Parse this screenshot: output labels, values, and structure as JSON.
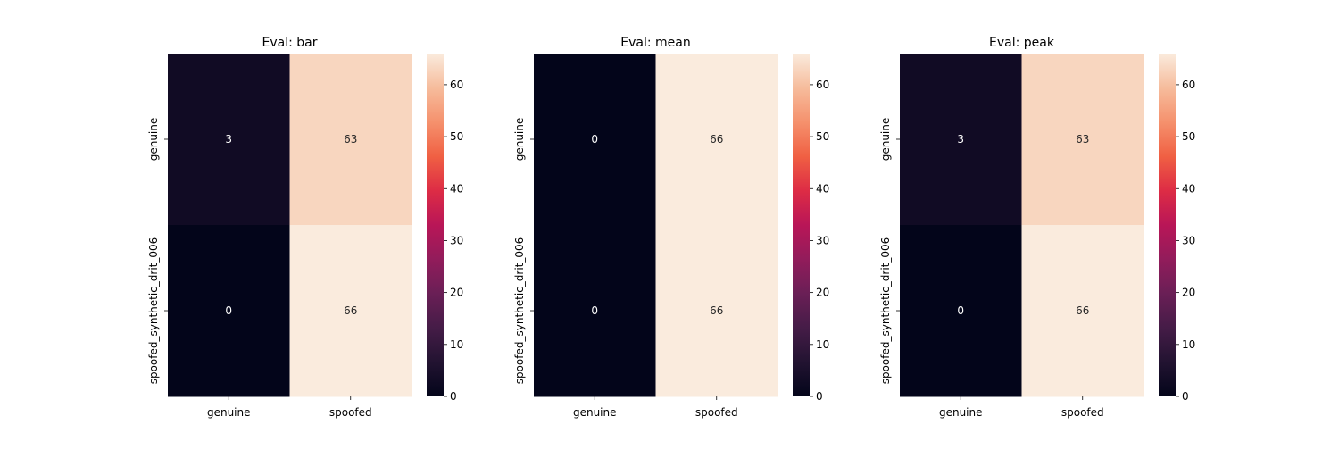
{
  "chart_data": [
    {
      "type": "heatmap",
      "title": "Eval: bar",
      "rows": [
        "genuine",
        "spoofed_synthetic_drit_006"
      ],
      "cols": [
        "genuine",
        "spoofed"
      ],
      "values": [
        [
          3,
          63
        ],
        [
          0,
          66
        ]
      ],
      "colorbar": {
        "min": 0,
        "max": 66,
        "ticks": [
          0,
          10,
          20,
          30,
          40,
          50,
          60
        ]
      }
    },
    {
      "type": "heatmap",
      "title": "Eval: mean",
      "rows": [
        "genuine",
        "spoofed_synthetic_drit_006"
      ],
      "cols": [
        "genuine",
        "spoofed"
      ],
      "values": [
        [
          0,
          66
        ],
        [
          0,
          66
        ]
      ],
      "colorbar": {
        "min": 0,
        "max": 66,
        "ticks": [
          0,
          10,
          20,
          30,
          40,
          50,
          60
        ]
      }
    },
    {
      "type": "heatmap",
      "title": "Eval: peak",
      "rows": [
        "genuine",
        "spoofed_synthetic_drit_006"
      ],
      "cols": [
        "genuine",
        "spoofed"
      ],
      "values": [
        [
          3,
          63
        ],
        [
          0,
          66
        ]
      ],
      "colorbar": {
        "min": 0,
        "max": 66,
        "ticks": [
          0,
          10,
          20,
          30,
          40,
          50,
          60
        ]
      }
    }
  ]
}
